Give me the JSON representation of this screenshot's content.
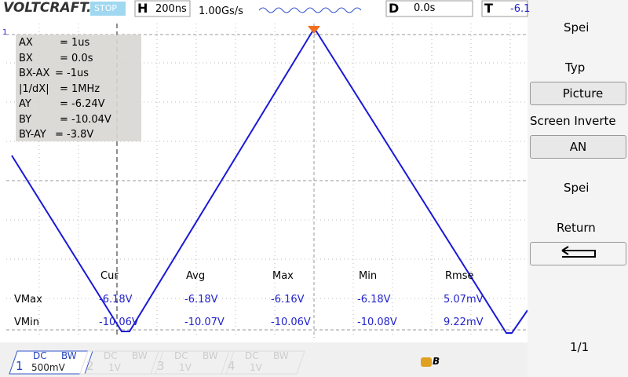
{
  "top_bar": {
    "brand": "VOLTCRAFT.",
    "status": "STOP",
    "timebase_label": "H",
    "timebase": "200ns",
    "sample_rate": "1.00Gs/s",
    "delay_label": "D",
    "delay": "0.0s",
    "trigger_label": "T",
    "trigger": "-6.1"
  },
  "channel_marker": "1",
  "cursor_readout": [
    {
      "label": "AX",
      "value": "= 1us"
    },
    {
      "label": "BX",
      "value": "= 0.0s"
    },
    {
      "label": "BX-AX",
      "value": "= -1us"
    },
    {
      "label": "|1/dX|",
      "value": "= 1MHz"
    },
    {
      "label": "AY",
      "value": "= -6.24V"
    },
    {
      "label": "BY",
      "value": "= -10.04V"
    },
    {
      "label": "BY-AY",
      "value": "= -3.8V"
    }
  ],
  "measurements": {
    "columns": [
      "Cur",
      "Avg",
      "Max",
      "Min",
      "Rmse"
    ],
    "rows": [
      {
        "label": "VMax",
        "values": [
          "-6.18V",
          "-6.18V",
          "-6.16V",
          "-6.18V",
          "5.07mV"
        ]
      },
      {
        "label": "VMin",
        "values": [
          "-10.06V",
          "-10.07V",
          "-10.06V",
          "-10.08V",
          "9.22mV"
        ]
      }
    ]
  },
  "menu": {
    "title": "Spei",
    "type_label": "Typ",
    "type_value": "Picture",
    "invert_label": "Screen Inverte",
    "invert_value": "AN",
    "save": "Spei",
    "return": "Return",
    "page": "1/1"
  },
  "channels": [
    {
      "number": "1",
      "coupling": "DC",
      "bandwidth": "BW",
      "scale": "500mV"
    },
    {
      "number": "2",
      "coupling": "DC",
      "bandwidth": "BW",
      "scale": "1V"
    },
    {
      "number": "3",
      "coupling": "DC",
      "bandwidth": "BW",
      "scale": "1V"
    },
    {
      "number": "4",
      "coupling": "DC",
      "bandwidth": "BW",
      "scale": "1V"
    }
  ],
  "status_icon": "B"
}
